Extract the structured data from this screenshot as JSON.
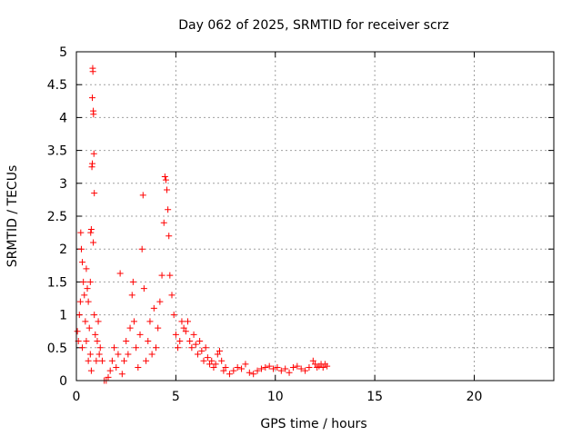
{
  "chart_data": {
    "type": "scatter",
    "title": "Day 062 of 2025, SRMTID for receiver scrz",
    "xlabel": "GPS time / hours",
    "ylabel": "SRMTID / TECUs",
    "xlim": [
      0,
      24
    ],
    "ylim": [
      0,
      5
    ],
    "xticks": [
      0,
      5,
      10,
      15,
      20
    ],
    "xtick_labels": [
      "0",
      "5",
      "10",
      "15",
      "20"
    ],
    "yticks": [
      0,
      0.5,
      1,
      1.5,
      2,
      2.5,
      3,
      3.5,
      4,
      4.5,
      5
    ],
    "ytick_labels": [
      "0",
      "0.5",
      "1",
      "1.5",
      "2",
      "2.5",
      "3",
      "3.5",
      "4",
      "4.5",
      "5"
    ],
    "grid": true,
    "marker": "+",
    "series": [
      {
        "name": "SRMTID",
        "color": "#ff0000",
        "points": [
          [
            0.05,
            0.75
          ],
          [
            0.1,
            0.6
          ],
          [
            0.15,
            1.0
          ],
          [
            0.2,
            1.2
          ],
          [
            0.22,
            2.25
          ],
          [
            0.25,
            2.0
          ],
          [
            0.3,
            1.8
          ],
          [
            0.3,
            0.5
          ],
          [
            0.35,
            1.5
          ],
          [
            0.4,
            1.3
          ],
          [
            0.45,
            0.9
          ],
          [
            0.5,
            1.7
          ],
          [
            0.5,
            0.6
          ],
          [
            0.55,
            1.4
          ],
          [
            0.6,
            1.2
          ],
          [
            0.6,
            0.3
          ],
          [
            0.65,
            0.8
          ],
          [
            0.7,
            0.4
          ],
          [
            0.7,
            1.5
          ],
          [
            0.72,
            2.25
          ],
          [
            0.75,
            2.3
          ],
          [
            0.75,
            0.15
          ],
          [
            0.78,
            3.25
          ],
          [
            0.8,
            3.3
          ],
          [
            0.8,
            4.3
          ],
          [
            0.82,
            4.75
          ],
          [
            0.83,
            4.7
          ],
          [
            0.85,
            4.1
          ],
          [
            0.86,
            4.05
          ],
          [
            0.88,
            3.45
          ],
          [
            0.9,
            2.85
          ],
          [
            0.85,
            2.1
          ],
          [
            0.9,
            1.0
          ],
          [
            0.95,
            0.7
          ],
          [
            1.0,
            0.3
          ],
          [
            1.05,
            0.6
          ],
          [
            1.1,
            0.9
          ],
          [
            1.15,
            0.4
          ],
          [
            1.2,
            0.5
          ],
          [
            1.3,
            0.3
          ],
          [
            1.4,
            0.0
          ],
          [
            1.5,
            0.0
          ],
          [
            1.6,
            0.05
          ],
          [
            1.7,
            0.15
          ],
          [
            1.8,
            0.3
          ],
          [
            1.9,
            0.5
          ],
          [
            2.0,
            0.2
          ],
          [
            2.1,
            0.4
          ],
          [
            2.2,
            1.63
          ],
          [
            2.3,
            0.1
          ],
          [
            2.4,
            0.3
          ],
          [
            2.5,
            0.6
          ],
          [
            2.6,
            0.4
          ],
          [
            2.7,
            0.8
          ],
          [
            2.8,
            1.3
          ],
          [
            2.85,
            1.5
          ],
          [
            2.9,
            0.9
          ],
          [
            3.0,
            0.5
          ],
          [
            3.1,
            0.2
          ],
          [
            3.2,
            0.7
          ],
          [
            3.3,
            2.0
          ],
          [
            3.35,
            2.82
          ],
          [
            3.4,
            1.4
          ],
          [
            3.5,
            0.3
          ],
          [
            3.6,
            0.6
          ],
          [
            3.7,
            0.9
          ],
          [
            3.8,
            0.4
          ],
          [
            3.9,
            1.1
          ],
          [
            4.0,
            0.5
          ],
          [
            4.1,
            0.8
          ],
          [
            4.2,
            1.2
          ],
          [
            4.3,
            1.6
          ],
          [
            4.4,
            2.4
          ],
          [
            4.45,
            3.1
          ],
          [
            4.5,
            3.05
          ],
          [
            4.55,
            2.9
          ],
          [
            4.6,
            2.6
          ],
          [
            4.65,
            2.2
          ],
          [
            4.7,
            1.6
          ],
          [
            4.8,
            1.3
          ],
          [
            4.9,
            1.0
          ],
          [
            5.0,
            0.7
          ],
          [
            5.1,
            0.5
          ],
          [
            5.2,
            0.6
          ],
          [
            5.3,
            0.9
          ],
          [
            5.4,
            0.8
          ],
          [
            5.5,
            0.75
          ],
          [
            5.6,
            0.9
          ],
          [
            5.7,
            0.6
          ],
          [
            5.8,
            0.5
          ],
          [
            5.9,
            0.7
          ],
          [
            6.0,
            0.55
          ],
          [
            6.1,
            0.4
          ],
          [
            6.2,
            0.6
          ],
          [
            6.3,
            0.45
          ],
          [
            6.4,
            0.3
          ],
          [
            6.5,
            0.5
          ],
          [
            6.6,
            0.35
          ],
          [
            6.7,
            0.25
          ],
          [
            6.8,
            0.3
          ],
          [
            6.9,
            0.2
          ],
          [
            7.0,
            0.25
          ],
          [
            7.1,
            0.4
          ],
          [
            7.2,
            0.45
          ],
          [
            7.3,
            0.3
          ],
          [
            7.4,
            0.15
          ],
          [
            7.5,
            0.2
          ],
          [
            7.7,
            0.1
          ],
          [
            7.9,
            0.15
          ],
          [
            8.1,
            0.2
          ],
          [
            8.3,
            0.18
          ],
          [
            8.5,
            0.25
          ],
          [
            8.7,
            0.12
          ],
          [
            8.9,
            0.1
          ],
          [
            9.1,
            0.15
          ],
          [
            9.3,
            0.18
          ],
          [
            9.5,
            0.2
          ],
          [
            9.7,
            0.22
          ],
          [
            9.9,
            0.18
          ],
          [
            10.1,
            0.2
          ],
          [
            10.3,
            0.15
          ],
          [
            10.5,
            0.18
          ],
          [
            10.7,
            0.12
          ],
          [
            10.9,
            0.2
          ],
          [
            11.1,
            0.22
          ],
          [
            11.3,
            0.18
          ],
          [
            11.5,
            0.15
          ],
          [
            11.7,
            0.2
          ],
          [
            11.9,
            0.3
          ],
          [
            12.0,
            0.25
          ],
          [
            12.1,
            0.2
          ],
          [
            12.2,
            0.22
          ],
          [
            12.3,
            0.25
          ],
          [
            12.4,
            0.2
          ],
          [
            12.5,
            0.25
          ],
          [
            12.6,
            0.22
          ]
        ]
      }
    ]
  }
}
